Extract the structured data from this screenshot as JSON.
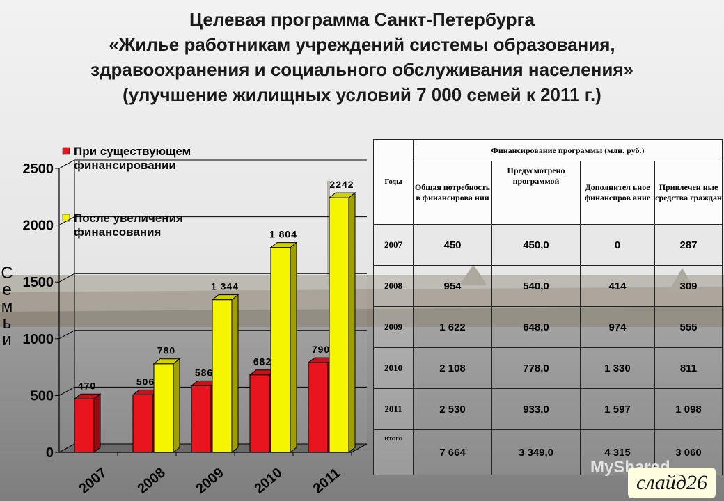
{
  "title": {
    "line1": "Целевая программа Санкт-Петербурга",
    "line2": "«Жилье работникам учреждений системы образования,",
    "line3": "здравоохранения и социального обслуживания населения»",
    "line4": "(улучшение жилищных условий 7 000 семей к 2011 г.)"
  },
  "chart_data": {
    "type": "bar",
    "categories": [
      "2007",
      "2008",
      "2009",
      "2010",
      "2011"
    ],
    "series": [
      {
        "name": "При существующем финансировании",
        "color": "#e8141e",
        "values": [
          470,
          506,
          586,
          682,
          790
        ],
        "labels": [
          "470",
          "506",
          "586",
          "682",
          "790"
        ]
      },
      {
        "name": "После увеличения финансования",
        "color": "#f6f500",
        "values": [
          null,
          780,
          1344,
          1804,
          2242
        ],
        "labels": [
          "",
          "780",
          "1 344",
          "1 804",
          "2242"
        ]
      }
    ],
    "ylabel": "Семьи",
    "ylim": [
      0,
      2500
    ],
    "yticks": [
      0,
      500,
      1000,
      1500,
      2000,
      2500
    ],
    "legend": "top-left"
  },
  "table": {
    "header_years": "Годы",
    "header_group": "Финансирование программы (млн. руб.)",
    "columns": [
      "Общая потребность в финансирова нии",
      "Предусмотрено программой",
      "Дополнител ьное финансиров ание",
      "Привлечен ные средства граждан"
    ],
    "rows": [
      {
        "year": "2007",
        "cells": [
          "450",
          "450,0",
          "0",
          "287"
        ]
      },
      {
        "year": "2008",
        "cells": [
          "954",
          "540,0",
          "414",
          "309"
        ]
      },
      {
        "year": "2009",
        "cells": [
          "1 622",
          "648,0",
          "974",
          "555"
        ]
      },
      {
        "year": "2010",
        "cells": [
          "2 108",
          "778,0",
          "1 330",
          "811"
        ]
      },
      {
        "year": "2011",
        "cells": [
          "2 530",
          "933,0",
          "1 597",
          "1 098"
        ]
      },
      {
        "year": "итого",
        "cells": [
          "7 664",
          "3 349,0",
          "4 315",
          "3 060"
        ]
      }
    ]
  },
  "slide_label": "слайд26",
  "watermark": "MyShared"
}
